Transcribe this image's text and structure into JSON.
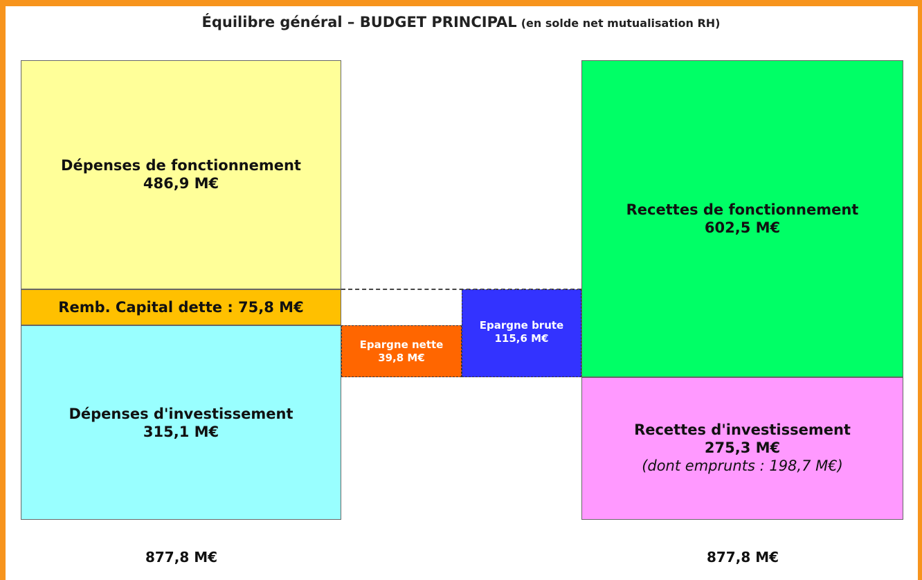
{
  "title": {
    "main": "Équilibre général – BUDGET PRINCIPAL",
    "sub": "(en solde net mutualisation RH)"
  },
  "blocks": [
    {
      "label": "Dépenses de fonctionnement",
      "amount": "486,9 M€"
    },
    {
      "label": "Remb. Capital dette : 75,8 M€"
    },
    {
      "label": "Dépenses d'investissement",
      "amount": "315,1 M€"
    },
    {
      "label": "Epargne nette",
      "amount": "39,8 M€"
    },
    {
      "label": "Epargne brute",
      "amount": "115,6 M€"
    },
    {
      "label": "Recettes de fonctionnement",
      "amount": "602,5 M€"
    },
    {
      "label": "Recettes d'investissement",
      "amount": "275,3 M€",
      "note": "(dont emprunts : 198,7 M€)"
    }
  ],
  "totals": {
    "left": "877,8 M€",
    "right": "877,8 M€"
  }
}
